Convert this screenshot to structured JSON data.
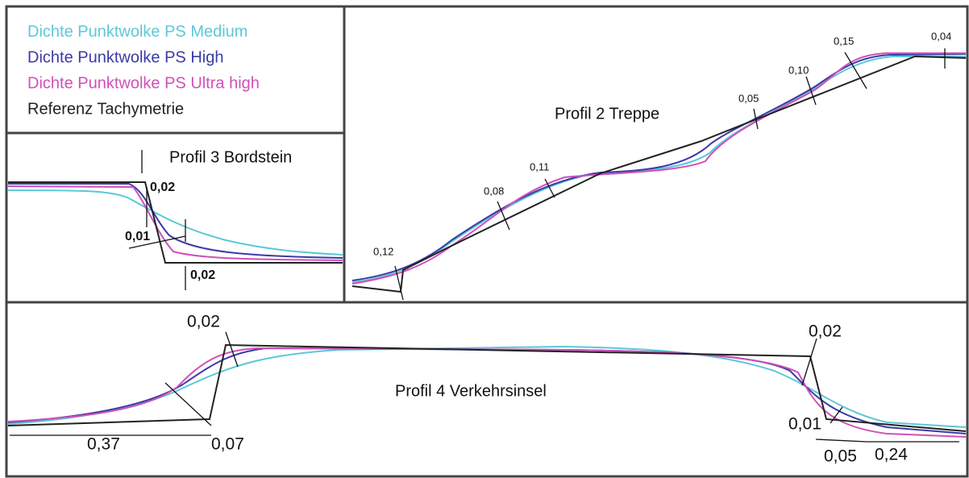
{
  "legend": [
    {
      "label": "Dichte Punktwolke PS Medium",
      "color": "#5cc8d8"
    },
    {
      "label": "Dichte Punktwolke PS High",
      "color": "#3a3aa8"
    },
    {
      "label": "Dichte Punktwolke PS Ultra high",
      "color": "#d050b8"
    },
    {
      "label": "Referenz Tachymetrie",
      "color": "#222222"
    }
  ],
  "profiles": [
    {
      "title": "Profil 3 Bordstein",
      "labels": [
        "0,02",
        "0,01",
        "0,02"
      ]
    },
    {
      "title": "Profil 2 Treppe",
      "labels": [
        "0,12",
        "0,08",
        "0,11",
        "0,05",
        "0,10",
        "0,15",
        "0,04"
      ]
    },
    {
      "title": "Profil 4 Verkehrsinsel",
      "labels": [
        "0,02",
        "0,37",
        "0,07",
        "0,02",
        "0,01",
        "0,05",
        "0,24"
      ]
    }
  ]
}
